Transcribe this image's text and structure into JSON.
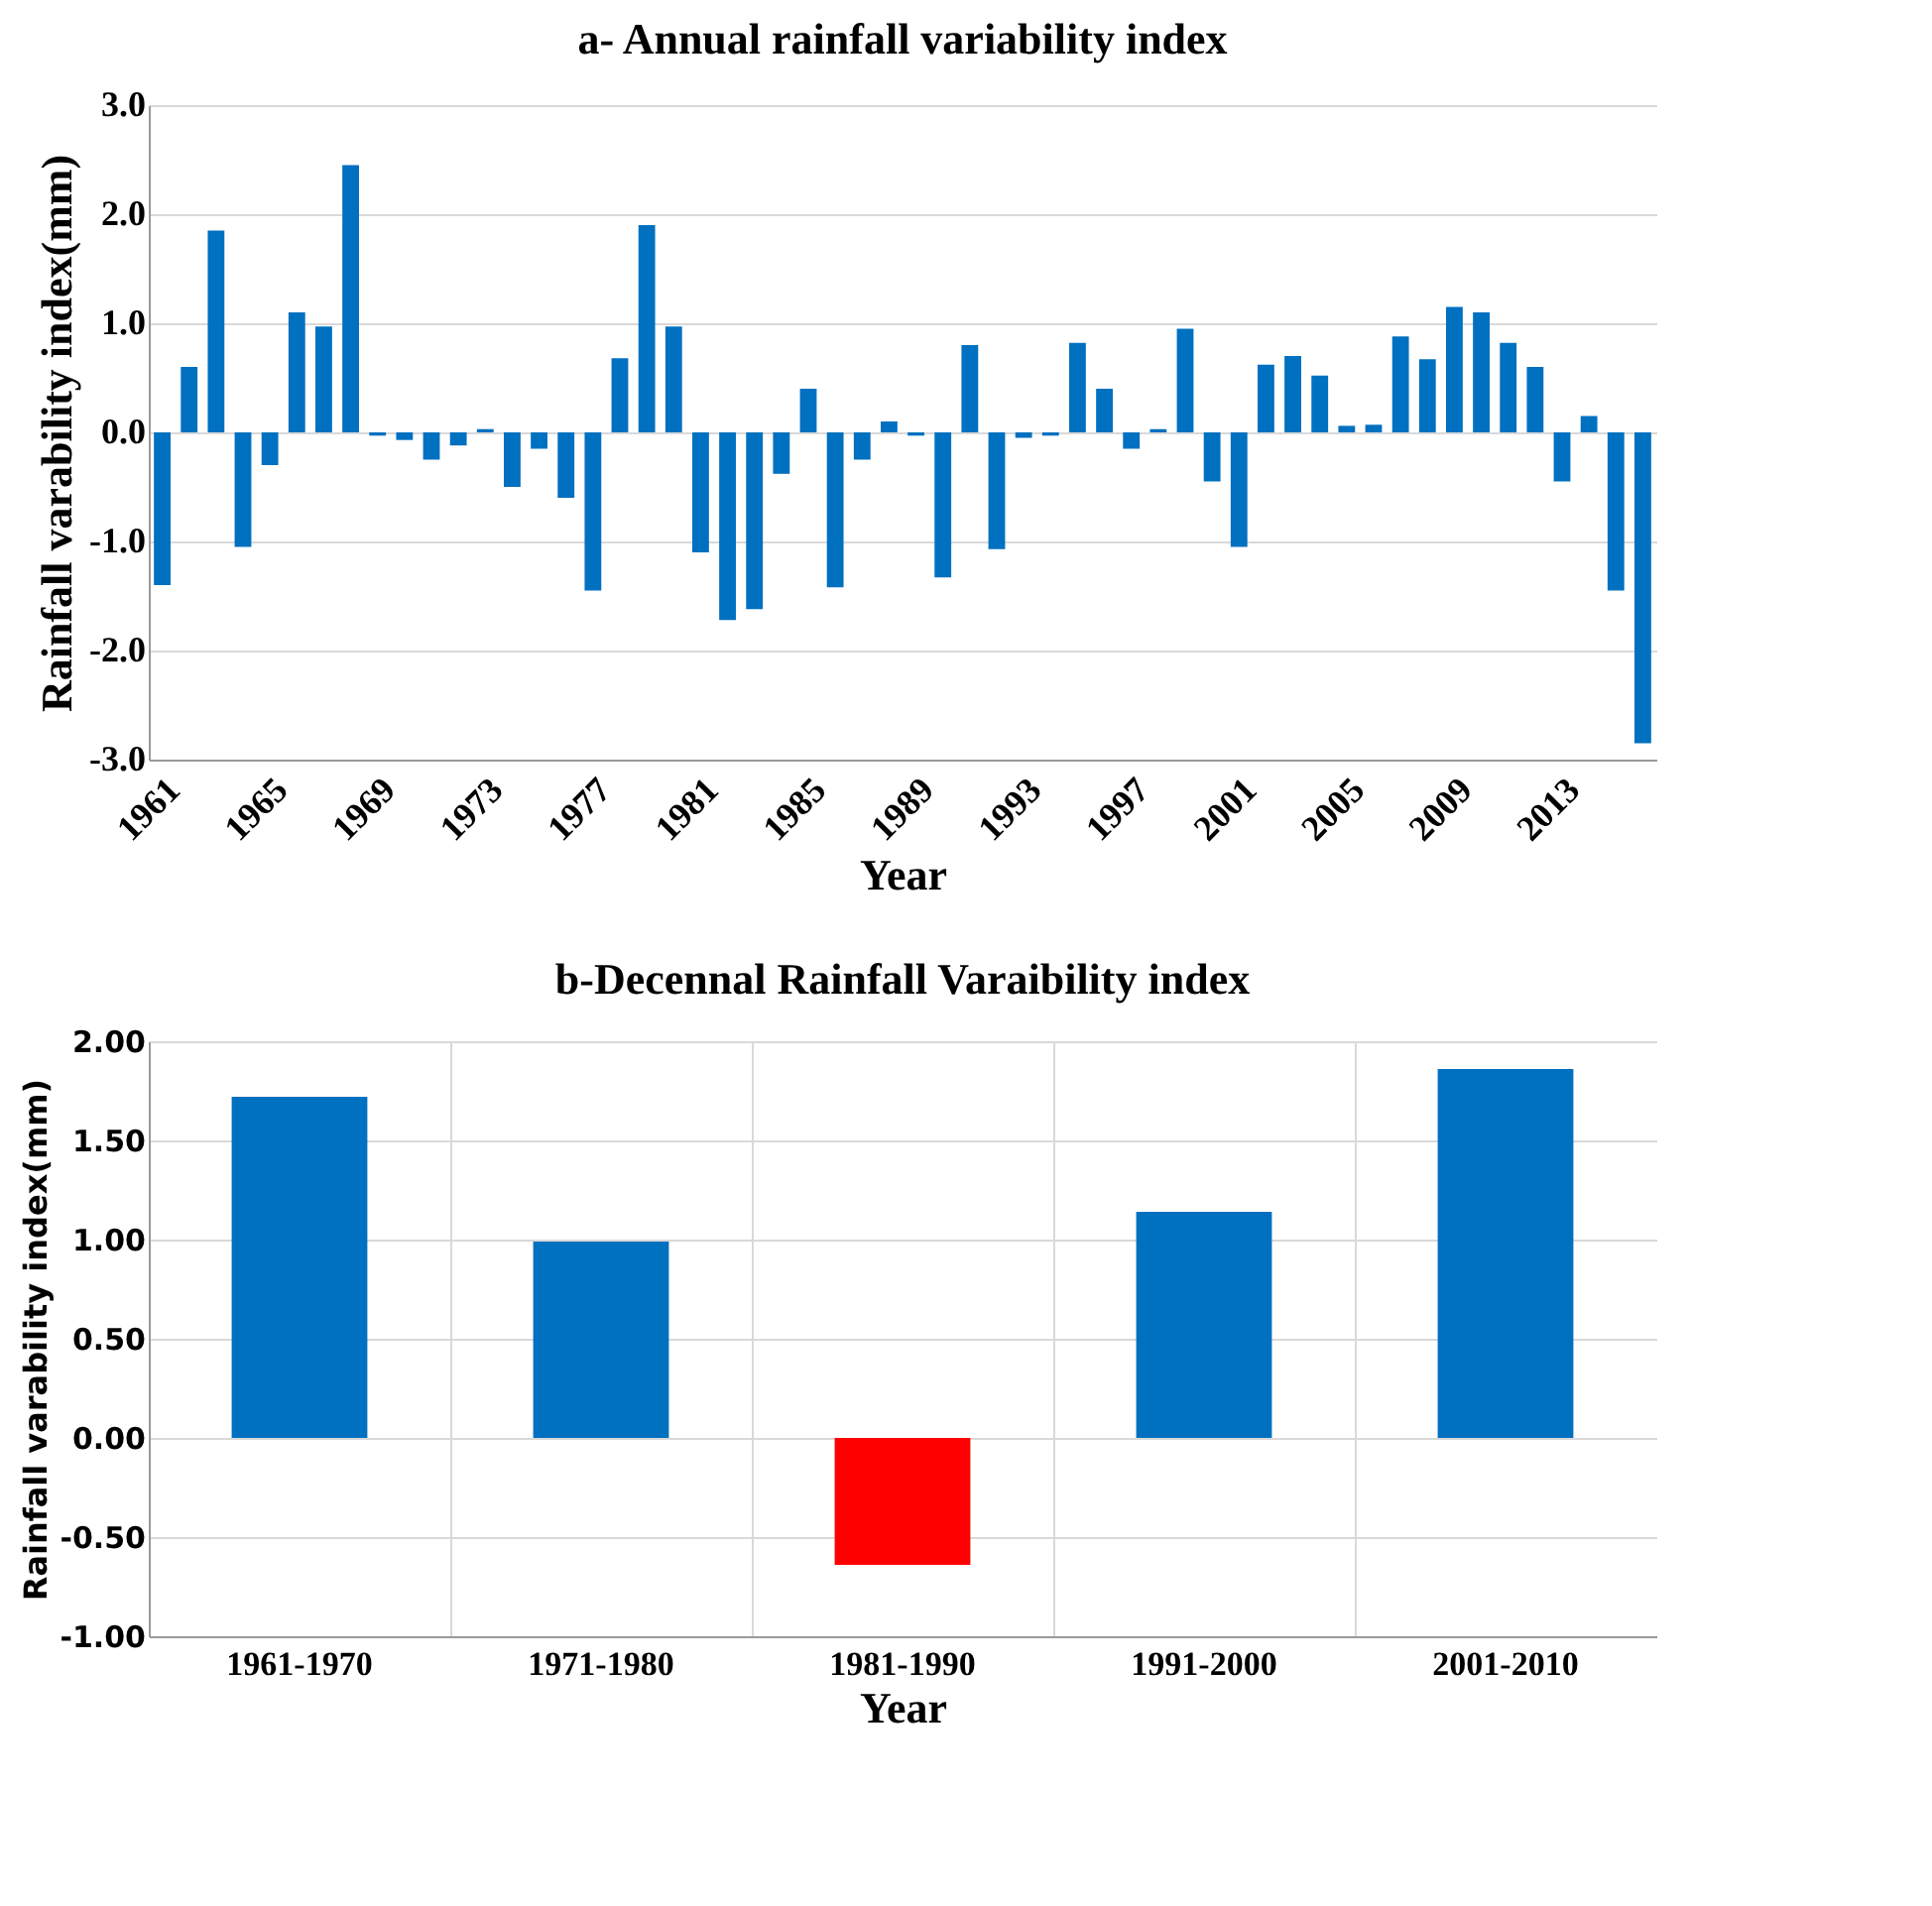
{
  "chart_data": [
    {
      "type": "bar",
      "title": "a- Annual rainfall variability index",
      "xlabel": "Year",
      "ylabel": "Rainfall varability index(mm)",
      "categories": [
        "1961",
        null,
        null,
        null,
        "1965",
        null,
        null,
        null,
        "1969",
        null,
        null,
        null,
        "1973",
        null,
        null,
        null,
        "1977",
        null,
        null,
        null,
        "1981",
        null,
        null,
        null,
        "1985",
        null,
        null,
        null,
        "1989",
        null,
        null,
        null,
        "1993",
        null,
        null,
        null,
        "1997",
        null,
        null,
        null,
        "2001",
        null,
        null,
        null,
        "2005",
        null,
        null,
        null,
        "2009",
        null,
        null,
        null,
        "2013",
        null,
        null,
        null
      ],
      "values": [
        -1.4,
        0.6,
        1.85,
        -1.05,
        -0.3,
        1.1,
        0.97,
        2.45,
        -0.03,
        -0.07,
        -0.25,
        -0.12,
        0.03,
        -0.5,
        -0.15,
        -0.6,
        -1.45,
        0.68,
        1.9,
        0.97,
        -1.1,
        -1.72,
        -1.62,
        -0.38,
        0.4,
        -1.42,
        -0.25,
        0.1,
        -0.03,
        -1.33,
        0.8,
        -1.07,
        -0.05,
        -0.03,
        0.82,
        0.4,
        -0.15,
        0.03,
        0.95,
        -0.45,
        -1.05,
        0.62,
        0.7,
        0.52,
        0.06,
        0.07,
        0.88,
        0.67,
        1.15,
        1.1,
        0.82,
        0.6,
        -0.45,
        0.15,
        -1.45,
        -2.85
      ],
      "color": "#0070c0",
      "ylim": [
        -3,
        3
      ],
      "yticks": [
        {
          "value": -3,
          "label": "-3.0"
        },
        {
          "value": -2,
          "label": "-2.0"
        },
        {
          "value": -1,
          "label": "-1.0"
        },
        {
          "value": 0,
          "label": "0.0"
        },
        {
          "value": 1,
          "label": "1.0"
        },
        {
          "value": 2,
          "label": "2.0"
        },
        {
          "value": 3,
          "label": "3.0"
        }
      ],
      "grid": "y"
    },
    {
      "type": "bar",
      "title": "b-Decennal Rainfall Varaibility index",
      "xlabel": "Year",
      "ylabel": "Rainfall varability index(mm)",
      "categories": [
        "1961-1970",
        "1971-1980",
        "1981-1990",
        "1991-2000",
        "2001-2010"
      ],
      "values": [
        1.72,
        0.99,
        -0.64,
        1.14,
        1.86
      ],
      "colors": [
        "#0070c0",
        "#0070c0",
        "#ff0000",
        "#0070c0",
        "#0070c0"
      ],
      "ylim": [
        -1,
        2
      ],
      "yticks": [
        {
          "value": -1,
          "label": "-1.00"
        },
        {
          "value": -0.5,
          "label": "-0.50"
        },
        {
          "value": 0,
          "label": "0.00"
        },
        {
          "value": 0.5,
          "label": "0.50"
        },
        {
          "value": 1,
          "label": "1.00"
        },
        {
          "value": 1.5,
          "label": "1.50"
        },
        {
          "value": 2,
          "label": "2.00"
        }
      ],
      "grid": true
    }
  ]
}
